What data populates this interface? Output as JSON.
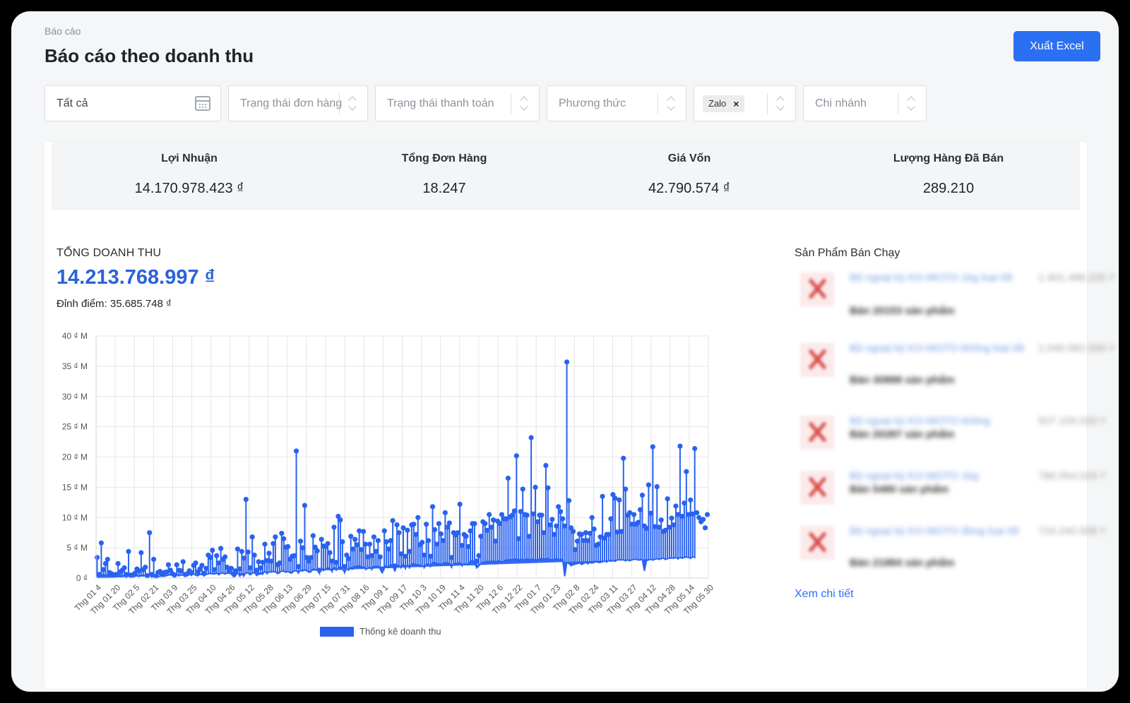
{
  "breadcrumb": "Báo cáo",
  "page_title": "Báo cáo theo doanh thu",
  "export_label": "Xuất Excel",
  "filters": {
    "date_value": "Tất cả",
    "order_status_placeholder": "Trạng thái đơn hàng",
    "payment_status_placeholder": "Trạng thái thanh toán",
    "method_placeholder": "Phương thức",
    "channel_tag": "Zalo",
    "tag_remove": "×",
    "branch_placeholder": "Chi nhánh"
  },
  "stats": [
    {
      "label": "Lợi Nhuận",
      "value": "14.170.978.423 ₫"
    },
    {
      "label": "Tổng Đơn Hàng",
      "value": "18.247"
    },
    {
      "label": "Giá Vốn",
      "value": "42.790.574 ₫"
    },
    {
      "label": "Lượng Hàng Đã Bán",
      "value": "289.210"
    }
  ],
  "revenue": {
    "label": "TỔNG DOANH THU",
    "total": "14.213.768.997 ₫",
    "peak": "Đỉnh điểm: 35.685.748 ₫"
  },
  "best_sellers": {
    "title": "Sản Phẩm Bán Chạy",
    "items": [
      {
        "name": "Bộ ngoại kỳ KO-MOTO 1kg loại tốt",
        "price": "1.401.498.220 ₫",
        "sold": "Bán 20153 sản phẩm"
      },
      {
        "name": "Bộ ngoại kỳ KO-MOTO không loại tốt",
        "price": "1.046.582.500 ₫",
        "sold": "Bán 30888 sản phẩm"
      },
      {
        "name": "Bộ ngoại kỳ KO-MOTO không",
        "price": "927.105.020 ₫",
        "sold": "Bán 20287 sản phẩm"
      },
      {
        "name": "Bộ ngoại kỳ KO-MOTO 1kg",
        "price": "786.554.024 ₫",
        "sold": "Bán 5480 sản phẩm"
      },
      {
        "name": "Bộ ngoại kỳ KO-MOTO đóng loại tốt",
        "price": "724.240.508 ₫",
        "sold": "Bán 21884 sản phẩm"
      }
    ],
    "more_link": "Xem chi tiết"
  },
  "chart_data": {
    "type": "line",
    "title": "",
    "xlabel": "",
    "ylabel": "",
    "y_unit": "M",
    "y_tick_labels": [
      "0 ₫",
      "5 ₫ M",
      "10 ₫ M",
      "15 ₫ M",
      "20 ₫ M",
      "25 ₫ M",
      "30 ₫ M",
      "35 ₫ M",
      "40 ₫ M"
    ],
    "ylim": [
      0,
      40
    ],
    "x_tick_labels": [
      "Thg 01 4",
      "Thg 01 20",
      "Thg 02 5",
      "Thg 02 21",
      "Thg 03 9",
      "Thg 03 25",
      "Thg 04 10",
      "Thg 04 26",
      "Thg 05 12",
      "Thg 05 28",
      "Thg 06 13",
      "Thg 06 29",
      "Thg 07 15",
      "Thg 07 31",
      "Thg 08 16",
      "Thg 09 1",
      "Thg 09 17",
      "Thg 10 3",
      "Thg 10 19",
      "Thg 11 4",
      "Thg 11 20",
      "Thg 12 6",
      "Thg 12 22",
      "Thg 01 7",
      "Thg 01 23",
      "Thg 02 8",
      "Thg 02 24",
      "Thg 03 11",
      "Thg 03 27",
      "Thg 04 12",
      "Thg 04 28",
      "Thg 05 14",
      "Thg 05 30"
    ],
    "legend": {
      "placement": "bottom",
      "label": "Thống kê doanh thu"
    },
    "color": "#2962f0",
    "grid": true,
    "series": [
      {
        "values": [
          3.4,
          0.6,
          5.8,
          1.4,
          2.4,
          3.1,
          0.9,
          0.7,
          0.5,
          0.6,
          2.4,
          1,
          1.3,
          1.7,
          0.6,
          4.4,
          0.5,
          0.5,
          0.8,
          1.5,
          1.2,
          4.2,
          1.4,
          1.8,
          0.4,
          7.5,
          0.6,
          3.1,
          0.3,
          0.9,
          1.1,
          0.7,
          0.9,
          1,
          2.2,
          1.3,
          0.7,
          0.5,
          2.2,
          1.3,
          1.2,
          2.7,
          0.6,
          0.7,
          1.2,
          0.9,
          2.1,
          2.5,
          1,
          1.5,
          2.1,
          0.8,
          1.6,
          3.8,
          3.4,
          4.6,
          1.4,
          3.7,
          2.5,
          4.9,
          3.1,
          3.5,
          1.8,
          1.3,
          1.6,
          0.7,
          1.2,
          4.8,
          1.5,
          4.4,
          3.3,
          13,
          4.3,
          1.7,
          6.8,
          3.8,
          1.3,
          2.7,
          1.7,
          2.6,
          5.6,
          2.9,
          4.1,
          2.8,
          5.7,
          6.8,
          2.2,
          2.5,
          7.4,
          6.5,
          5.1,
          5.2,
          3.1,
          3.6,
          3.7,
          21,
          1.9,
          6.1,
          5,
          12,
          3.4,
          2.8,
          3.4,
          7,
          5.1,
          4.5,
          1.3,
          6.4,
          5.3,
          5.2,
          5.7,
          4.2,
          2.8,
          8.4,
          2.6,
          10.2,
          9.6,
          6,
          1.9,
          3.8,
          3.2,
          6.9,
          4.8,
          6.4,
          5.5,
          7.8,
          4.7,
          7.7,
          5.6,
          3.5,
          5.6,
          3.7,
          6.8,
          4.4,
          6.2,
          3.5,
          1.5,
          7.8,
          6,
          4.8,
          6.2,
          9.5,
          2,
          8.8,
          7.5,
          4,
          8.3,
          3.6,
          7.9,
          4.4,
          8.8,
          8.9,
          7.2,
          10,
          5.5,
          5.9,
          3.8,
          8.9,
          6.2,
          3.6,
          11.8,
          8,
          5.6,
          9,
          7.3,
          6.2,
          10.8,
          8.4,
          9.1,
          3.4,
          7.5,
          7.1,
          7.5,
          12.2,
          5.4,
          7.2,
          6.9,
          5.2,
          7.8,
          9,
          9,
          2.8,
          3.7,
          6.9,
          9.3,
          9,
          7.9,
          10.5,
          8.4,
          9.6,
          6.1,
          9.4,
          9,
          10.5,
          9.8,
          9.8,
          16.5,
          10.1,
          10.4,
          11.1,
          20.2,
          6.5,
          11,
          14.7,
          10.5,
          10.4,
          6.9,
          23.2,
          10.6,
          15,
          9.3,
          10.4,
          10.4,
          7.5,
          18.6,
          14.9,
          8.8,
          9.7,
          7.2,
          8.6,
          11.8,
          11,
          9.8,
          8.6,
          35.7,
          12.8,
          8.3,
          7.7,
          4.7,
          6.1,
          7.3,
          7.2,
          6.2,
          7.5,
          6.2,
          7.4,
          10,
          8.1,
          5.4,
          5.6,
          6.8,
          13.5,
          6.6,
          7.2,
          7.2,
          9.8,
          13.8,
          13.2,
          7.6,
          12.9,
          7.7,
          19.8,
          14.7,
          10.4,
          10.8,
          8.9,
          10.5,
          8.9,
          9.2,
          11.3,
          13.7,
          8.6,
          8.2,
          15.4,
          10.7,
          21.7,
          8.5,
          15.1,
          8.4,
          9.6,
          7.7,
          7.9,
          13.1,
          8.4,
          9.9,
          8.8,
          11.9,
          10.5,
          21.8,
          10.2,
          12.4,
          17.6,
          10.5,
          12.9,
          10.6,
          21.4,
          10.8,
          10,
          9.3,
          9.7,
          8.3,
          10.5
        ],
        "base": [
          0.3,
          0.2,
          0.6,
          0.5,
          0.5,
          0.5,
          0.3,
          0.3,
          0.3,
          0.3,
          0.6,
          0.3,
          0.4,
          0.4,
          0.2,
          0.6,
          0.2,
          0.3,
          0.3,
          0.5,
          0.3,
          0.5,
          0.4,
          0.4,
          0.2,
          0.7,
          0.2,
          0.3,
          0.2,
          0.2,
          0.3,
          0.3,
          0.3,
          0.4,
          0.5,
          0.6,
          0.4,
          0.3,
          0.6,
          0.4,
          0.5,
          0.5,
          0.3,
          0.4,
          0.6,
          0.5,
          0.7,
          0.5,
          0.4,
          0.6,
          0.6,
          0.4,
          0.6,
          0.7,
          0.8,
          0.7,
          0.7,
          0.8,
          0.6,
          0.8,
          0.8,
          0.7,
          0.8,
          0.8,
          0.7,
          0.3,
          0.4,
          0.9,
          0.4,
          0.6,
          0.4,
          0.9,
          0.8,
          0.6,
          0.8,
          0.9,
          0.5,
          0.6,
          0.7,
          0.7,
          1.1,
          0.8,
          1,
          1,
          1.1,
          1,
          0.8,
          0.9,
          1.2,
          1.1,
          1,
          1.1,
          0.9,
          0.9,
          1.2,
          1.2,
          0.9,
          1.3,
          1.2,
          1.4,
          1.2,
          1,
          1.1,
          1.5,
          1.4,
          1.4,
          0.8,
          1.6,
          1.3,
          1.5,
          1.7,
          1.6,
          1.1,
          1.8,
          1.4,
          1.6,
          1.9,
          1.5,
          1,
          1.5,
          1.4,
          1.8,
          1.6,
          2,
          1.8,
          2.1,
          1.7,
          1.9,
          1.5,
          1.6,
          1.8,
          1.5,
          2,
          1.8,
          2,
          1.5,
          0.8,
          2.1,
          1.8,
          1.9,
          2.2,
          2.1,
          1.1,
          2.2,
          2,
          1.8,
          2.3,
          1.7,
          2.2,
          1.8,
          2.3,
          2.4,
          2.1,
          2.3,
          2,
          2.1,
          1.8,
          2.3,
          2.3,
          2,
          2.5,
          2.6,
          2.3,
          2.4,
          2.2,
          2.4,
          2.6,
          2.4,
          2.5,
          1.9,
          2.3,
          2.5,
          2.3,
          2.6,
          2.1,
          2.4,
          2.3,
          2.3,
          2.8,
          2.9,
          2.6,
          1.7,
          2,
          2.4,
          2.6,
          2.7,
          2.7,
          2.8,
          2.6,
          2.9,
          2.5,
          2.9,
          2.8,
          2.6,
          2.8,
          3,
          3,
          3,
          3.1,
          3.1,
          3.2,
          2.9,
          3.1,
          3.1,
          2.9,
          3.2,
          3,
          3.1,
          3.1,
          3,
          3,
          3.2,
          3.2,
          3.1,
          3.2,
          3.2,
          3.1,
          3,
          3.1,
          3.2,
          3.1,
          3,
          3.2,
          0.3,
          2.6,
          2.4,
          2.1,
          2.2,
          2.3,
          2.4,
          2.5,
          2.3,
          2.4,
          2.6,
          2.4,
          2.6,
          2.5,
          2.6,
          2.7,
          2.6,
          2.6,
          2.7,
          2.8,
          2.7,
          2.9,
          2.8,
          2.9,
          2.8,
          3,
          3,
          3,
          3,
          2.9,
          3,
          2.9,
          3,
          3.1,
          3.1,
          3,
          3,
          3.1,
          1.2,
          2.9,
          3,
          3.1,
          3,
          3.1,
          3.2,
          3.1,
          3.2,
          3.3,
          3.1,
          3.2,
          3.3,
          3.3,
          3.3,
          3.4,
          3.2,
          3.4,
          3.3,
          3.4,
          3.5,
          3.4,
          3.3,
          3.5,
          3.4
        ]
      }
    ]
  }
}
